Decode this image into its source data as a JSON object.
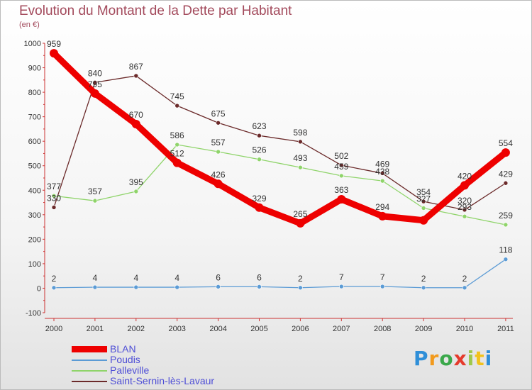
{
  "title": "Evolution du Montant de la Dette par Habitant",
  "subtitle": "(en €)",
  "logo": [
    "P",
    "r",
    "o",
    "x",
    "i",
    "t",
    "i"
  ],
  "chart_data": {
    "type": "line",
    "categories": [
      "2000",
      "2001",
      "2002",
      "2003",
      "2004",
      "2005",
      "2006",
      "2007",
      "2008",
      "2009",
      "2010",
      "2011"
    ],
    "ylim": [
      -100,
      1000
    ],
    "yticks": [
      -100,
      0,
      100,
      200,
      300,
      400,
      500,
      600,
      700,
      800,
      900,
      1000
    ],
    "grid": false,
    "legend_position": "bottom-left",
    "series": [
      {
        "name": "BLAN",
        "color": "#ee0000",
        "values": [
          959,
          795,
          670,
          512,
          426,
          329,
          265,
          363,
          294,
          277,
          420,
          554
        ]
      },
      {
        "name": "Poudis",
        "color": "#5b9bd5",
        "values": [
          2,
          4,
          4,
          4,
          6,
          6,
          2,
          7,
          7,
          2,
          2,
          118
        ]
      },
      {
        "name": "Palleville",
        "color": "#8fd46a",
        "values": [
          377,
          357,
          395,
          586,
          557,
          526,
          493,
          459,
          438,
          327,
          293,
          259
        ]
      },
      {
        "name": "Saint-Sernin-lès-Lavaur",
        "color": "#6b2a2a",
        "values": [
          330,
          840,
          867,
          745,
          675,
          623,
          598,
          502,
          469,
          354,
          320,
          429
        ]
      }
    ],
    "labels": [
      [
        "959",
        "795",
        "670",
        "512",
        "426",
        "329",
        "265",
        "363",
        "294",
        "",
        "420",
        "554"
      ],
      [
        "2",
        "4",
        "4",
        "4",
        "6",
        "6",
        "2",
        "7",
        "7",
        "2",
        "2",
        "118"
      ],
      [
        "377",
        "357",
        "395",
        "586",
        "557",
        "526",
        "493",
        "459",
        "438",
        "327",
        "293",
        "259"
      ],
      [
        "330",
        "840",
        "867",
        "745",
        "675",
        "623",
        "598",
        "502",
        "469",
        "354",
        "320",
        "429"
      ]
    ]
  }
}
